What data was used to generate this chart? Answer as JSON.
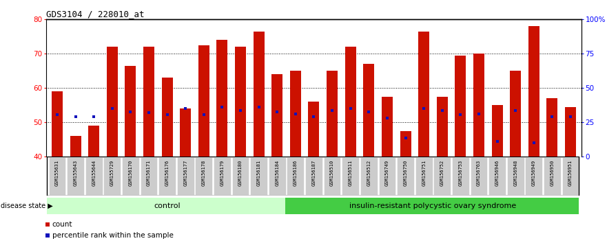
{
  "title": "GDS3104 / 228010_at",
  "samples": [
    "GSM155631",
    "GSM155643",
    "GSM155644",
    "GSM155729",
    "GSM156170",
    "GSM156171",
    "GSM156176",
    "GSM156177",
    "GSM156178",
    "GSM156179",
    "GSM156180",
    "GSM156181",
    "GSM156184",
    "GSM156186",
    "GSM156187",
    "GSM156510",
    "GSM156511",
    "GSM156512",
    "GSM156749",
    "GSM156750",
    "GSM156751",
    "GSM156752",
    "GSM156753",
    "GSM156763",
    "GSM156946",
    "GSM156948",
    "GSM156949",
    "GSM156950",
    "GSM156951"
  ],
  "count_values": [
    59.0,
    46.0,
    49.0,
    72.0,
    66.5,
    72.0,
    63.0,
    54.0,
    72.5,
    74.0,
    72.0,
    76.5,
    64.0,
    65.0,
    56.0,
    65.0,
    72.0,
    67.0,
    57.5,
    47.5,
    76.5,
    57.5,
    69.5,
    70.0,
    55.0,
    65.0,
    78.0,
    57.0,
    54.5
  ],
  "percentile_values": [
    52.2,
    51.6,
    51.6,
    54.0,
    53.0,
    52.8,
    52.2,
    54.0,
    52.2,
    54.5,
    53.5,
    54.5,
    53.0,
    52.5,
    51.6,
    53.5,
    54.0,
    53.0,
    51.2,
    45.5,
    54.0,
    53.5,
    52.2,
    52.5,
    44.5,
    53.5,
    44.0,
    51.6,
    51.6
  ],
  "control_count": 13,
  "disease_count": 16,
  "ylim_left": [
    40,
    80
  ],
  "ylim_right": [
    0,
    100
  ],
  "yticks_left": [
    40,
    50,
    60,
    70,
    80
  ],
  "yticks_right": [
    0,
    25,
    50,
    75,
    100
  ],
  "ytick_labels_right": [
    "0",
    "25",
    "50",
    "75",
    "100%"
  ],
  "bar_color": "#CC1100",
  "percentile_color": "#1111BB",
  "control_bg": "#ccffcc",
  "disease_bg": "#44cc44",
  "label_bg": "#cccccc",
  "control_label": "control",
  "disease_label": "insulin-resistant polycystic ovary syndrome",
  "disease_state_label": "disease state",
  "legend_count": "count",
  "legend_percentile": "percentile rank within the sample"
}
